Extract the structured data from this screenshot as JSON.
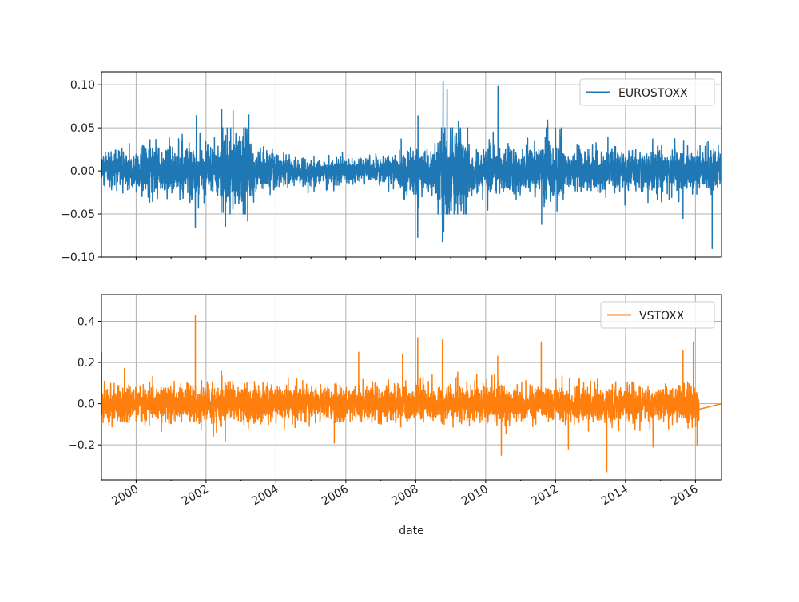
{
  "chart_data": [
    {
      "type": "line",
      "series": [
        {
          "name": "EUROSTOXX",
          "color": "#1f77b4",
          "extremes": [
            {
              "x": "2001-09-11",
              "y": -0.066
            },
            {
              "x": "2001-09-21",
              "y": 0.064
            },
            {
              "x": "2002-06-14",
              "y": 0.071
            },
            {
              "x": "2002-07-24",
              "y": -0.064
            },
            {
              "x": "2002-10-10",
              "y": 0.07
            },
            {
              "x": "2003-03-12",
              "y": -0.058
            },
            {
              "x": "2003-03-24",
              "y": 0.065
            },
            {
              "x": "2008-01-21",
              "y": -0.077
            },
            {
              "x": "2008-01-24",
              "y": 0.064
            },
            {
              "x": "2008-10-06",
              "y": -0.082
            },
            {
              "x": "2008-10-13",
              "y": 0.104
            },
            {
              "x": "2008-10-20",
              "y": -0.07
            },
            {
              "x": "2008-11-24",
              "y": 0.095
            },
            {
              "x": "2009-03-23",
              "y": 0.058
            },
            {
              "x": "2010-05-10",
              "y": 0.098
            },
            {
              "x": "2011-08-08",
              "y": -0.062
            },
            {
              "x": "2011-10-10",
              "y": 0.059
            },
            {
              "x": "2015-08-24",
              "y": -0.055
            },
            {
              "x": "2016-06-24",
              "y": -0.09
            }
          ]
        }
      ],
      "xlabel": "",
      "ylabel": "",
      "xlim": [
        "1999-01-04",
        "2016-09-30"
      ],
      "ylim": [
        -0.1,
        0.115
      ],
      "yticks": [
        "0.10",
        "0.05",
        "0.00",
        "−0.05",
        "−0.10"
      ],
      "grid": true,
      "legend": "top-right"
    },
    {
      "type": "line",
      "series": [
        {
          "name": "VSTOXX",
          "color": "#ff7f0e",
          "extremes": [
            {
              "x": "1999-01-06",
              "y": 0.25
            },
            {
              "x": "2001-09-11",
              "y": 0.43
            },
            {
              "x": "2002-07-22",
              "y": -0.18
            },
            {
              "x": "2005-09-02",
              "y": -0.19
            },
            {
              "x": "2006-05-15",
              "y": 0.25
            },
            {
              "x": "2007-08-16",
              "y": 0.24
            },
            {
              "x": "2008-01-21",
              "y": 0.32
            },
            {
              "x": "2008-10-06",
              "y": 0.31
            },
            {
              "x": "2010-05-06",
              "y": 0.23
            },
            {
              "x": "2010-06-14",
              "y": -0.25
            },
            {
              "x": "2011-08-04",
              "y": 0.3
            },
            {
              "x": "2012-05-14",
              "y": -0.22
            },
            {
              "x": "2013-06-20",
              "y": -0.33
            },
            {
              "x": "2014-10-15",
              "y": -0.21
            },
            {
              "x": "2015-08-24",
              "y": 0.26
            },
            {
              "x": "2015-12-10",
              "y": 0.3
            },
            {
              "x": "2016-01-18",
              "y": -0.2
            }
          ]
        }
      ],
      "xlabel": "date",
      "ylabel": "",
      "xlim": [
        "1999-01-04",
        "2016-09-30"
      ],
      "ylim": [
        -0.37,
        0.53
      ],
      "yticks": [
        "0.4",
        "0.2",
        "0.0",
        "−0.2"
      ],
      "xticks": [
        "2000",
        "2002",
        "2004",
        "2006",
        "2008",
        "2010",
        "2012",
        "2014",
        "2016"
      ],
      "grid": true,
      "legend": "top-right"
    }
  ]
}
